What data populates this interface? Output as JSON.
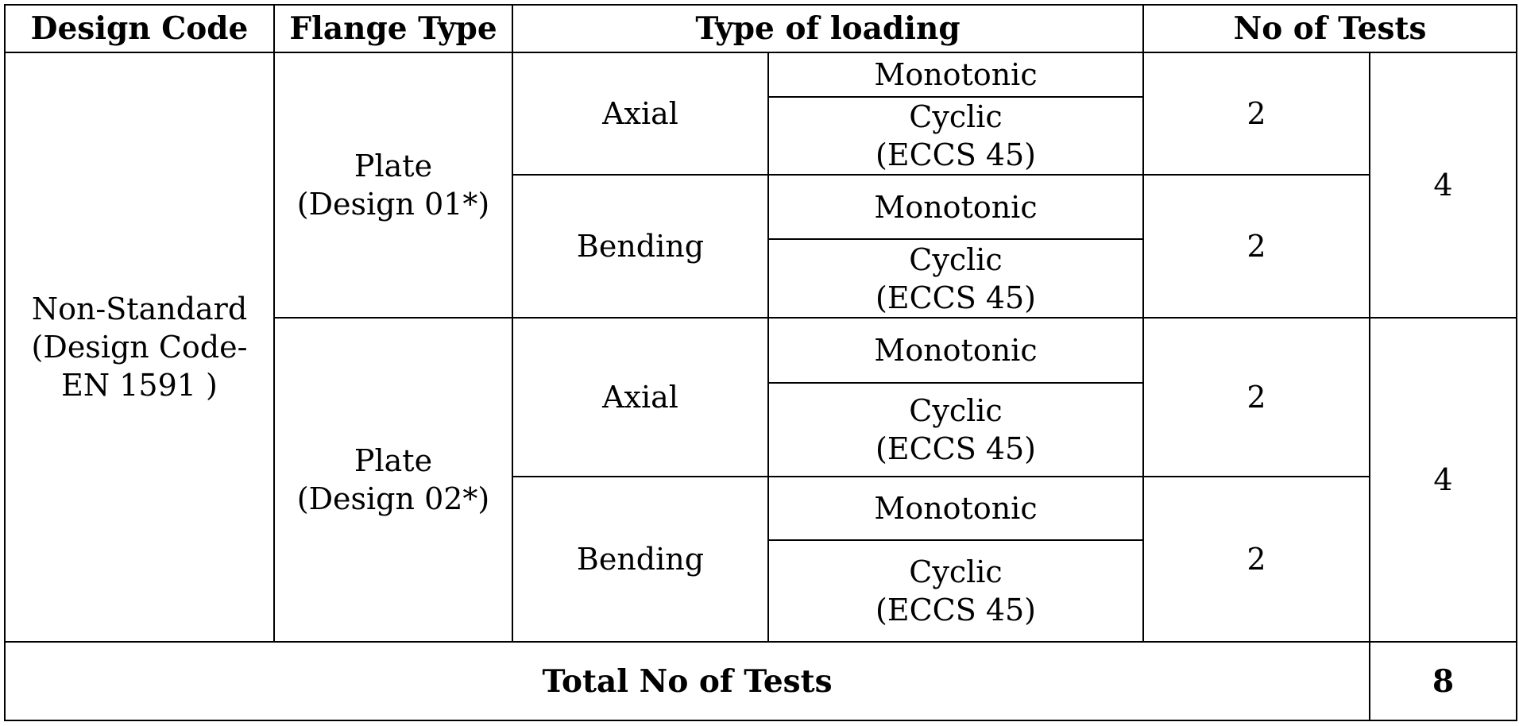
{
  "table": {
    "headers": {
      "design_code": "Design Code",
      "flange_type": "Flange Type",
      "type_of_loading": "Type of loading",
      "no_of_tests": "No of Tests"
    },
    "design_code_value": "Non-Standard\n(Design Code-\nEN 1591 )",
    "groups": [
      {
        "flange_type": "Plate\n(Design 01*)",
        "group_total": "4",
        "loadings": [
          {
            "type": "Axial",
            "tests": "2",
            "protocols": [
              "Monotonic",
              "Cyclic\n(ECCS 45)"
            ]
          },
          {
            "type": "Bending",
            "tests": "2",
            "protocols": [
              "Monotonic",
              "Cyclic\n(ECCS 45)"
            ]
          }
        ]
      },
      {
        "flange_type": "Plate\n(Design 02*)",
        "group_total": "4",
        "loadings": [
          {
            "type": "Axial",
            "tests": "2",
            "protocols": [
              "Monotonic",
              "Cyclic\n(ECCS 45)"
            ]
          },
          {
            "type": "Bending",
            "tests": "2",
            "protocols": [
              "Monotonic",
              "Cyclic\n(ECCS 45)"
            ]
          }
        ]
      }
    ],
    "total_label": "Total No of Tests",
    "total_value": "8"
  }
}
